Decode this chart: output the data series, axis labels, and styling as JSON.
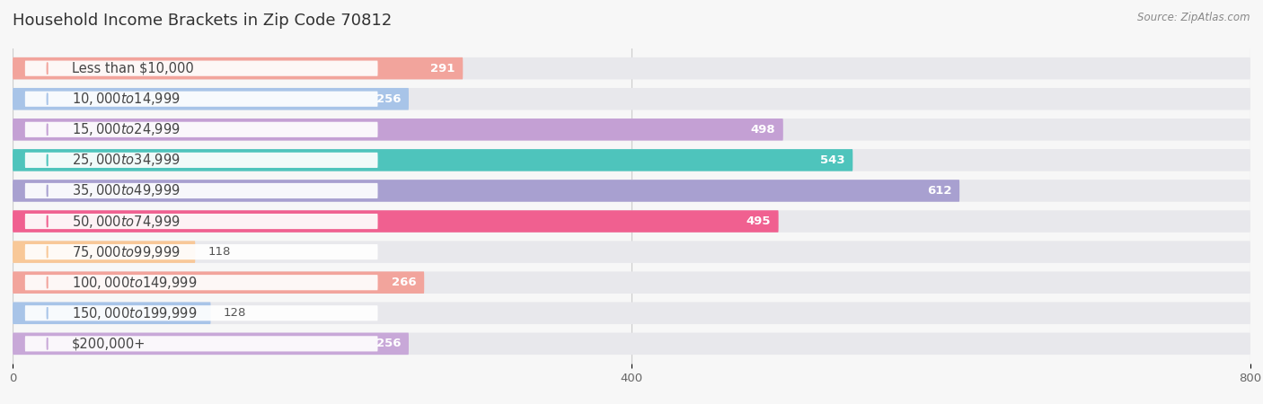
{
  "title": "Household Income Brackets in Zip Code 70812",
  "source": "Source: ZipAtlas.com",
  "categories": [
    "Less than $10,000",
    "$10,000 to $14,999",
    "$15,000 to $24,999",
    "$25,000 to $34,999",
    "$35,000 to $49,999",
    "$50,000 to $74,999",
    "$75,000 to $99,999",
    "$100,000 to $149,999",
    "$150,000 to $199,999",
    "$200,000+"
  ],
  "values": [
    291,
    256,
    498,
    543,
    612,
    495,
    118,
    266,
    128,
    256
  ],
  "bar_colors": [
    "#F2A49C",
    "#A8C4E8",
    "#C4A0D4",
    "#4EC4BC",
    "#A8A0D0",
    "#F06090",
    "#F8C898",
    "#F2A49C",
    "#A8C4E8",
    "#C8A8D8"
  ],
  "bar_bg_color": "#e8e8ec",
  "page_bg_color": "#f7f7f7",
  "xlim": [
    0,
    800
  ],
  "xticks": [
    0,
    400,
    800
  ],
  "title_fontsize": 13,
  "label_fontsize": 10.5,
  "value_fontsize": 9.5,
  "bar_height": 0.72,
  "bar_gap": 0.28
}
